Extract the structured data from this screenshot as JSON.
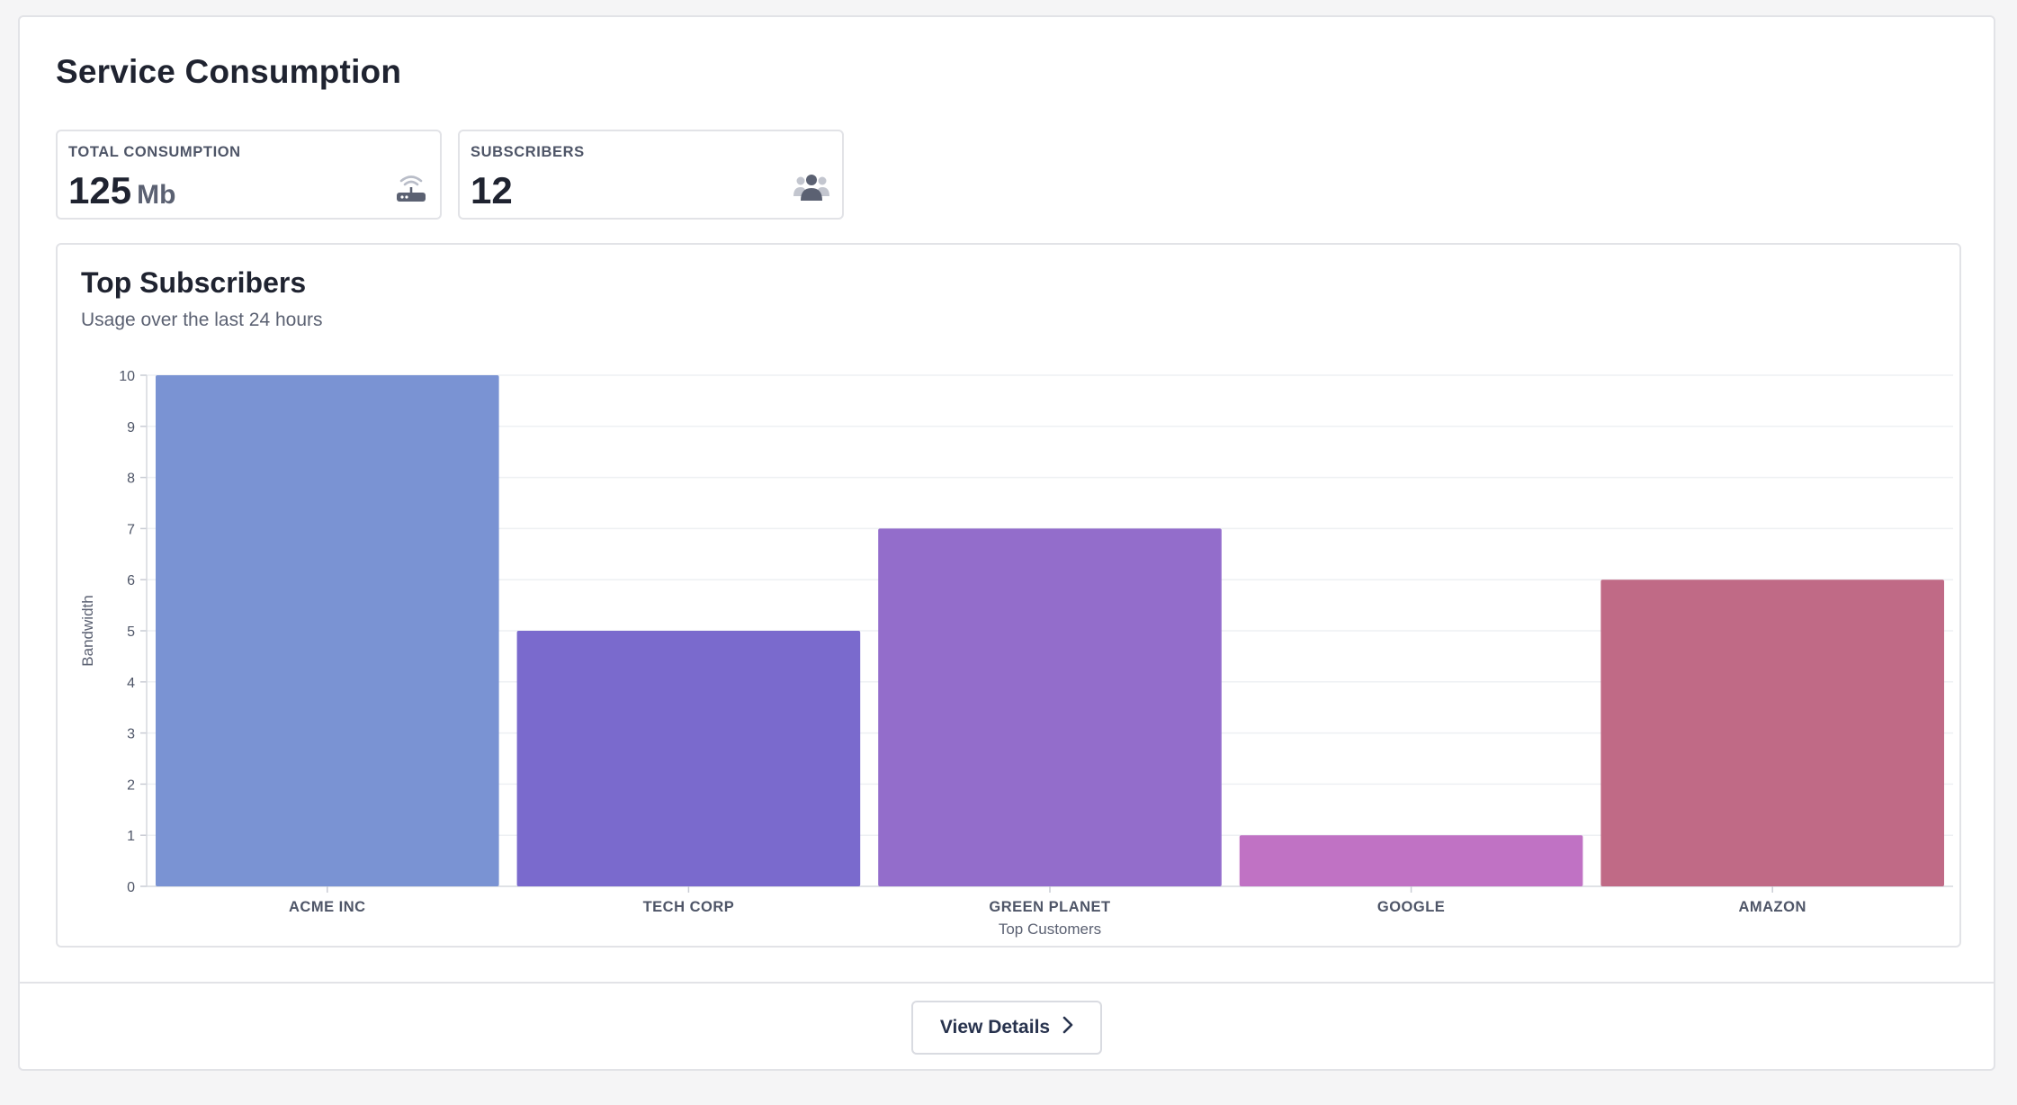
{
  "page": {
    "title": "Service Consumption"
  },
  "stats": [
    {
      "label": "TOTAL CONSUMPTION",
      "value": "125",
      "unit": "Mb",
      "icon": "router-icon"
    },
    {
      "label": "SUBSCRIBERS",
      "value": "12",
      "icon": "users-icon"
    }
  ],
  "chart_card": {
    "title": "Top Subscribers",
    "subtitle": "Usage over the last 24 hours"
  },
  "chart_data": {
    "type": "bar",
    "categories": [
      "ACME INC",
      "TECH CORP",
      "GREEN PLANET",
      "GOOGLE",
      "AMAZON"
    ],
    "values": [
      10,
      5,
      7,
      1,
      6
    ],
    "colors": [
      "#7a93d3",
      "#7a6acd",
      "#936dcb",
      "#c072c4",
      "#c06a86"
    ],
    "title": "Top Subscribers",
    "subtitle": "Usage over the last 24 hours",
    "xlabel": "Top Customers",
    "ylabel": "Bandwidth",
    "ylim": [
      0,
      10
    ],
    "yticks": [
      0,
      1,
      2,
      3,
      4,
      5,
      6,
      7,
      8,
      9,
      10
    ],
    "grid": true
  },
  "footer": {
    "view_details_label": "View Details"
  }
}
